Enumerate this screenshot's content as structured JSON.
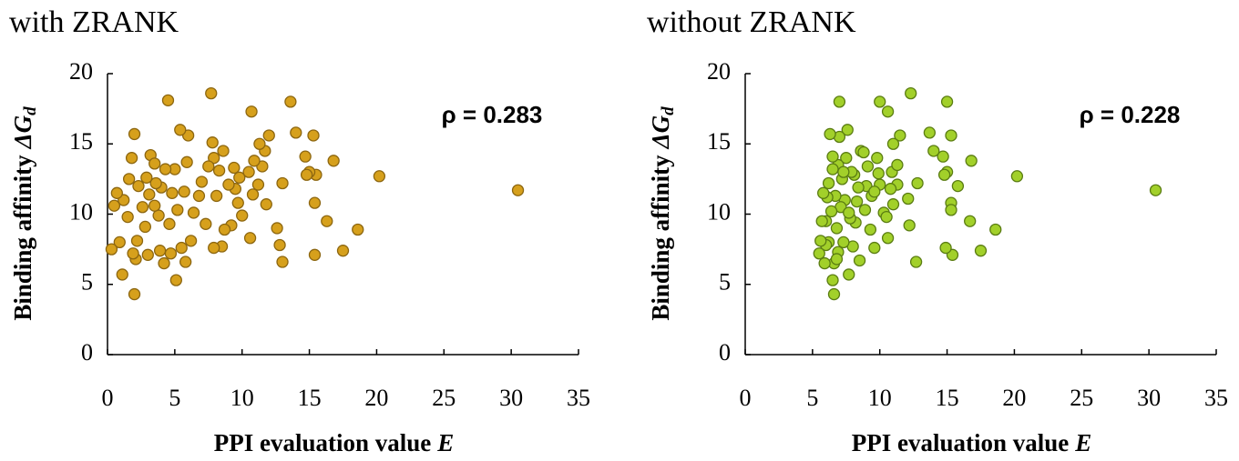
{
  "chart_data": [
    {
      "type": "scatter",
      "title": "with ZRANK",
      "x_label": {
        "text": "PPI evaluation value",
        "symbol": "E"
      },
      "y_label": {
        "text": "Binding affinity",
        "symbol": "ΔG",
        "subscript": "d"
      },
      "annotation": "ρ = 0.283",
      "color": "#d6a01c",
      "edge_color": "#8c6610",
      "xlim": [
        0,
        35
      ],
      "xticks": [
        0,
        5,
        10,
        15,
        20,
        25,
        30,
        35
      ],
      "ylim": [
        0,
        20
      ],
      "yticks": [
        0,
        5,
        10,
        15,
        20
      ],
      "x": [
        30.5,
        20.2,
        18.6,
        17.5,
        16.8,
        16.3,
        15.5,
        15.3,
        15.4,
        15.4,
        15.0,
        14.8,
        14.7,
        14.0,
        13.6,
        13.0,
        13.0,
        12.8,
        12.6,
        12.0,
        11.8,
        11.7,
        11.5,
        11.3,
        11.2,
        10.9,
        10.8,
        10.7,
        10.6,
        10.5,
        10.0,
        9.8,
        9.5,
        9.4,
        9.2,
        9.0,
        8.7,
        8.6,
        8.5,
        8.3,
        8.1,
        7.9,
        7.9,
        7.8,
        7.7,
        7.5,
        7.3,
        7.0,
        6.8,
        6.4,
        6.2,
        6.0,
        5.9,
        5.8,
        5.7,
        5.5,
        5.4,
        5.2,
        5.0,
        4.8,
        4.7,
        4.6,
        4.5,
        4.3,
        4.2,
        4.0,
        3.9,
        3.8,
        3.6,
        3.5,
        3.2,
        3.1,
        3.0,
        2.8,
        2.6,
        2.3,
        2.2,
        2.1,
        2.0,
        1.9,
        1.6,
        1.5,
        1.2,
        1.1,
        0.9,
        0.7,
        0.5,
        0.3,
        2.0,
        5.1,
        1.8,
        9.7,
        3.5,
        2.9
      ],
      "y": [
        11.7,
        12.7,
        8.9,
        7.4,
        13.8,
        9.5,
        12.8,
        15.6,
        10.8,
        7.1,
        13.0,
        12.8,
        14.1,
        15.8,
        18.0,
        12.2,
        6.6,
        7.8,
        9.0,
        15.6,
        10.7,
        14.5,
        13.4,
        15.0,
        12.1,
        13.8,
        11.4,
        17.3,
        8.3,
        13.0,
        9.9,
        12.6,
        11.8,
        13.3,
        9.2,
        12.1,
        8.9,
        14.5,
        7.7,
        13.1,
        11.3,
        14.0,
        7.6,
        15.1,
        18.6,
        13.4,
        9.3,
        12.3,
        11.3,
        10.1,
        8.1,
        15.6,
        13.7,
        6.6,
        11.6,
        7.6,
        16.0,
        10.3,
        13.2,
        11.5,
        7.2,
        9.3,
        18.1,
        13.2,
        6.5,
        11.9,
        7.4,
        9.9,
        12.2,
        10.6,
        14.2,
        11.4,
        7.1,
        9.1,
        10.5,
        12.0,
        8.1,
        6.8,
        15.7,
        7.2,
        12.5,
        9.8,
        11.0,
        5.7,
        8.0,
        11.5,
        10.6,
        7.5,
        4.3,
        5.3,
        14.0,
        10.8,
        13.6,
        12.6
      ]
    },
    {
      "type": "scatter",
      "title": "without ZRANK",
      "x_label": {
        "text": "PPI evaluation value",
        "symbol": "E"
      },
      "y_label": {
        "text": "Binding affinity",
        "symbol": "ΔG",
        "subscript": "d"
      },
      "annotation": "ρ = 0.228",
      "color": "#a2d02a",
      "edge_color": "#5a7c12",
      "xlim": [
        0,
        35
      ],
      "xticks": [
        0,
        5,
        10,
        15,
        20,
        25,
        30,
        35
      ],
      "ylim": [
        0,
        20
      ],
      "yticks": [
        0,
        5,
        10,
        15,
        20
      ],
      "x": [
        30.5,
        20.2,
        18.6,
        17.5,
        16.8,
        16.7,
        15.8,
        15.3,
        15.3,
        15.3,
        15.4,
        15.0,
        14.9,
        14.8,
        15.0,
        14.7,
        14.0,
        13.7,
        12.8,
        12.7,
        12.3,
        12.2,
        12.1,
        11.5,
        11.3,
        11.0,
        11.0,
        10.9,
        10.8,
        10.6,
        10.6,
        10.3,
        10.0,
        10.0,
        9.8,
        9.6,
        9.4,
        9.3,
        9.1,
        9.0,
        8.9,
        8.6,
        8.5,
        8.4,
        8.2,
        8.1,
        8.0,
        7.9,
        7.8,
        7.7,
        7.6,
        7.5,
        7.4,
        7.3,
        7.2,
        7.1,
        7.0,
        7.0,
        6.9,
        6.9,
        6.8,
        6.7,
        6.6,
        6.6,
        6.5,
        6.5,
        6.4,
        6.3,
        6.2,
        6.2,
        6.1,
        6.0,
        6.0,
        5.9,
        5.8,
        5.7,
        5.6,
        5.5,
        6.8,
        8.8,
        9.9,
        11.3,
        7.7,
        8.3,
        6.5,
        9.6,
        10.5,
        7.3
      ],
      "y": [
        11.7,
        12.7,
        8.9,
        7.4,
        13.8,
        9.5,
        12.0,
        15.6,
        10.8,
        10.3,
        7.1,
        13.0,
        7.6,
        12.8,
        18.0,
        14.1,
        14.5,
        15.8,
        12.2,
        6.6,
        18.6,
        9.2,
        11.1,
        15.6,
        12.1,
        10.7,
        15.0,
        13.0,
        11.8,
        17.3,
        8.3,
        10.1,
        18.0,
        12.1,
        14.0,
        7.6,
        11.3,
        8.9,
        13.4,
        12.0,
        10.3,
        14.5,
        6.7,
        11.9,
        9.4,
        12.8,
        7.7,
        13.0,
        9.7,
        5.7,
        16.0,
        14.0,
        11.0,
        8.0,
        12.5,
        10.5,
        18.0,
        15.5,
        13.5,
        7.3,
        9.0,
        11.3,
        6.5,
        4.3,
        5.3,
        13.2,
        10.2,
        15.7,
        12.2,
        8.0,
        11.2,
        7.8,
        9.5,
        6.5,
        11.5,
        9.5,
        8.1,
        7.2,
        6.8,
        14.4,
        12.9,
        13.5,
        10.1,
        10.9,
        14.1,
        11.6,
        9.8,
        13.0
      ]
    }
  ]
}
